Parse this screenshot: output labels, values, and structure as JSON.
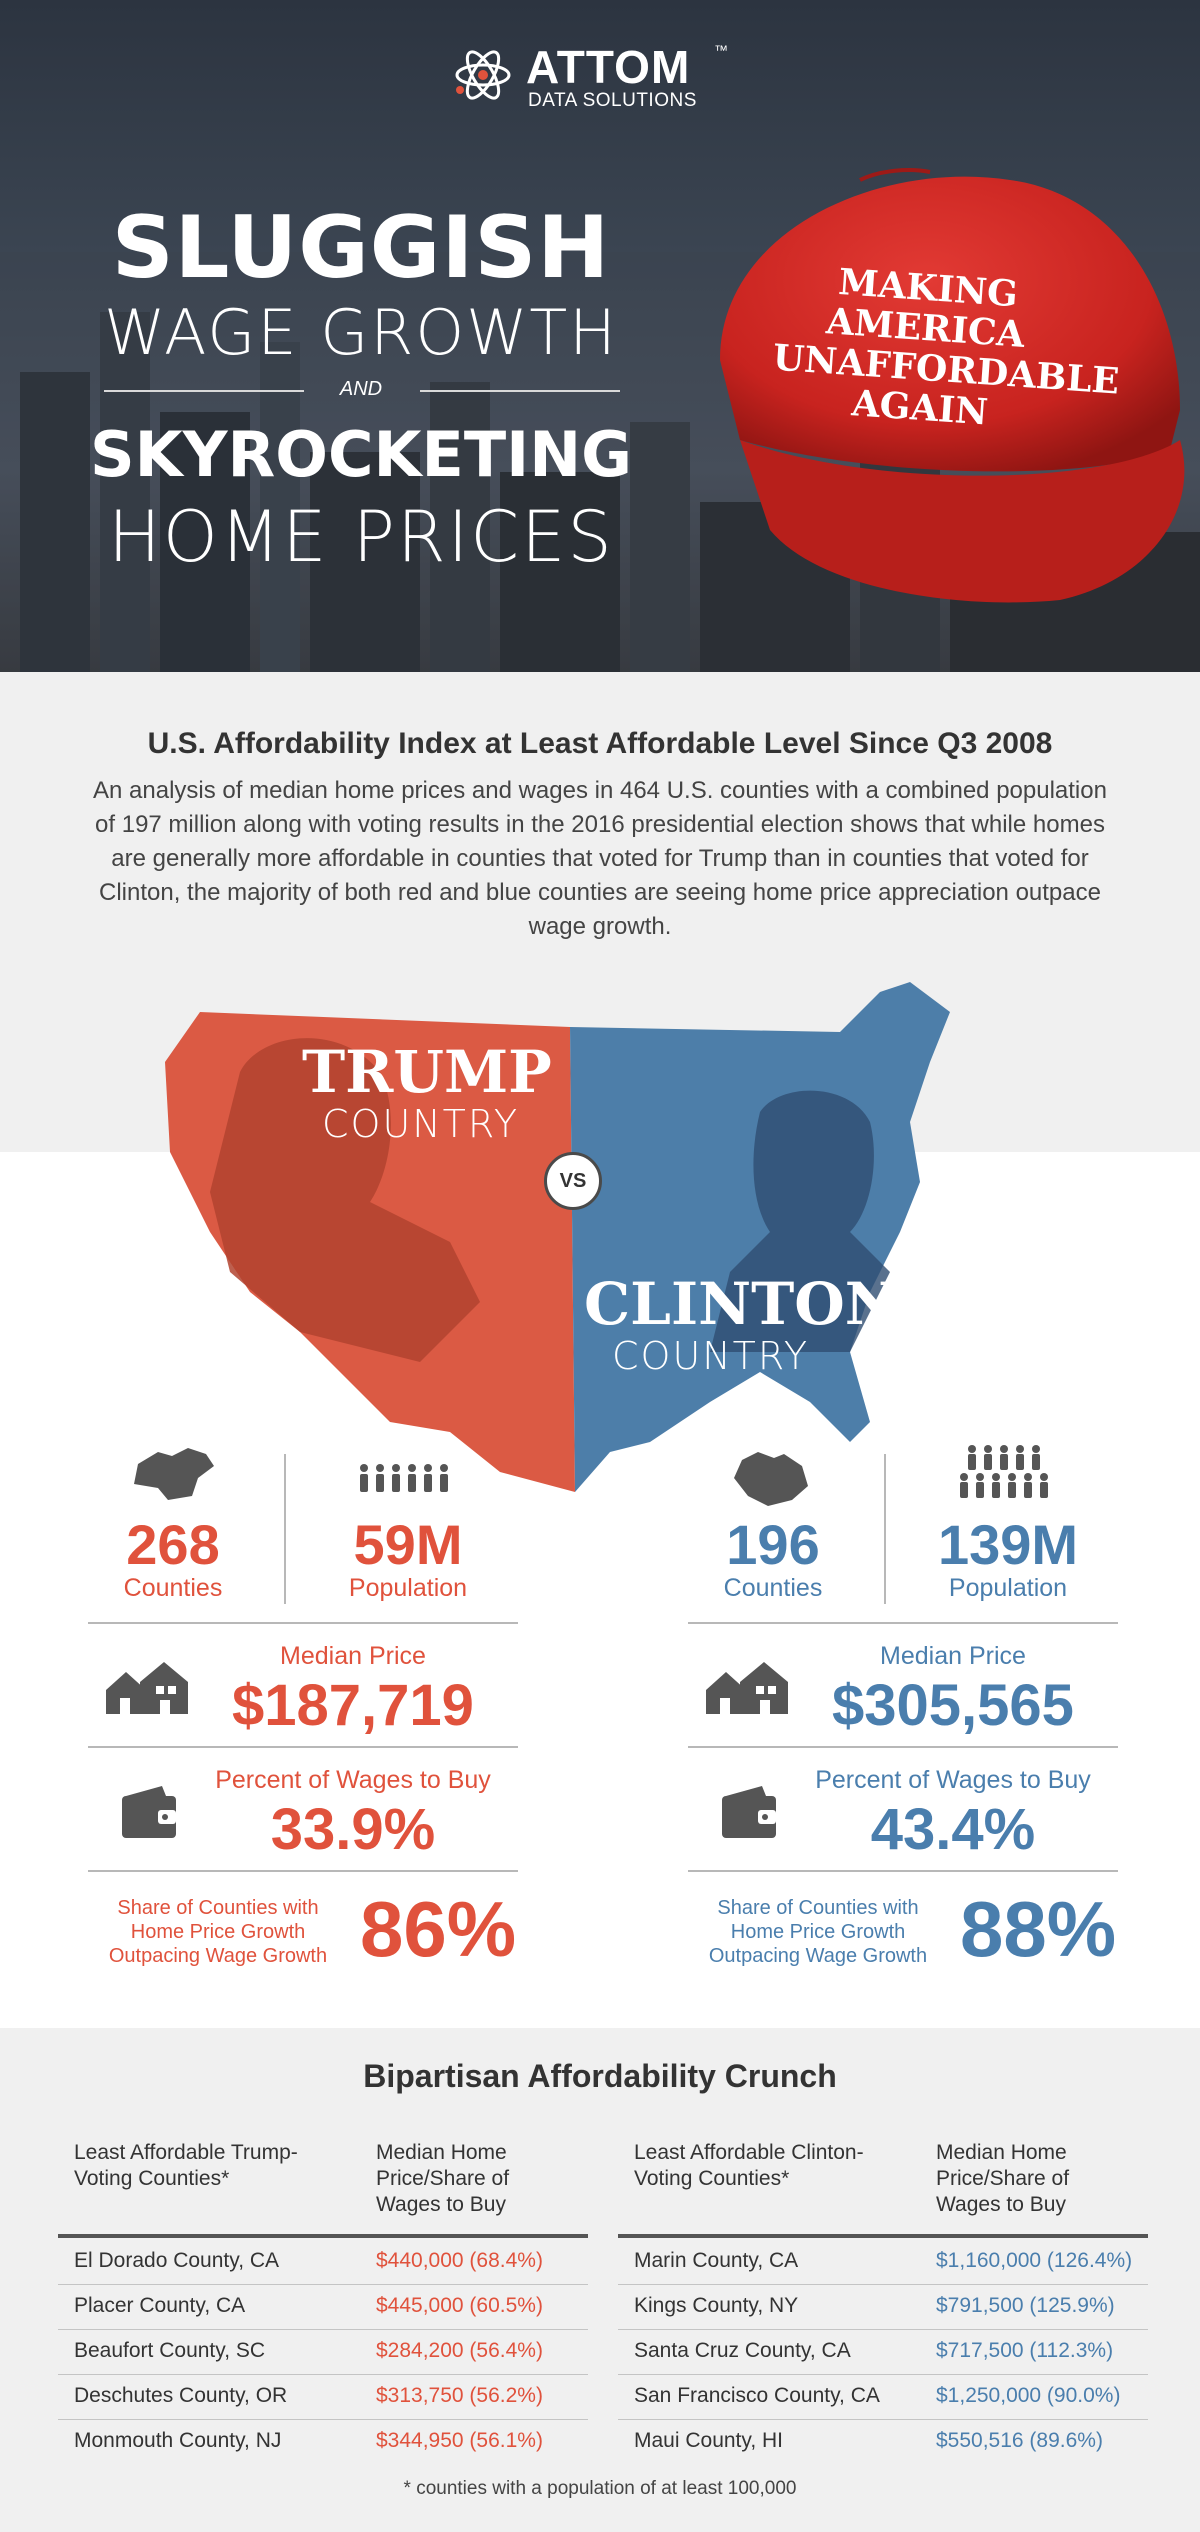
{
  "logo": {
    "word": "ATTOM",
    "tm": "™",
    "sub": "DATA SOLUTIONS"
  },
  "hero": {
    "line1": "SLUGGISH",
    "line2": "WAGE GROWTH",
    "and": "AND",
    "line3": "SKYROCKETING",
    "line4": "HOME PRICES",
    "cap_text": "MAKING AMERICA\nUNAFFORDABLE\nAGAIN"
  },
  "intro": {
    "title": "U.S. Affordability Index at Least Affordable Level Since Q3 2008",
    "body": "An analysis of median home prices and wages in 464 U.S. counties with a combined population of 197 million along with voting results in the 2016 presidential election shows that while homes are generally more affordable in counties that voted for Trump than in counties that voted for Clinton, the majority of both red and blue counties are seeing home price appreciation outpace wage growth."
  },
  "map": {
    "trump_big": "TRUMP",
    "trump_small": "COUNTRY",
    "vs": "VS",
    "clinton_big": "CLINTON",
    "clinton_small": "COUNTRY"
  },
  "colors": {
    "trump": "#e0523c",
    "clinton": "#4a7ead"
  },
  "trump": {
    "counties": "268",
    "counties_label": "Counties",
    "population": "59M",
    "population_label": "Population",
    "median_label": "Median Price",
    "median": "$187,719",
    "wages_label": "Percent of Wages to Buy",
    "wages": "33.9%",
    "share_label": "Share of Counties with Home Price Growth Outpacing Wage Growth",
    "share": "86%"
  },
  "clinton": {
    "counties": "196",
    "counties_label": "Counties",
    "population": "139M",
    "population_label": "Population",
    "median_label": "Median Price",
    "median": "$305,565",
    "wages_label": "Percent of Wages to Buy",
    "wages": "43.4%",
    "share_label": "Share of Counties with Home Price Growth Outpacing Wage Growth",
    "share": "88%"
  },
  "crunch": {
    "title": "Bipartisan Affordability Crunch",
    "trump_head1": "Least Affordable Trump-Voting Counties*",
    "trump_head2": "Median Home Price/Share of Wages to Buy",
    "clinton_head1": "Least Affordable Clinton-Voting Counties*",
    "clinton_head2": "Median Home Price/Share of Wages to Buy",
    "trump_rows": [
      [
        "El Dorado County, CA",
        "$440,000 (68.4%)"
      ],
      [
        "Placer County, CA",
        "$445,000 (60.5%)"
      ],
      [
        "Beaufort County, SC",
        "$284,200 (56.4%)"
      ],
      [
        "Deschutes County, OR",
        "$313,750 (56.2%)"
      ],
      [
        "Monmouth County, NJ",
        "$344,950 (56.1%)"
      ]
    ],
    "clinton_rows": [
      [
        "Marin County, CA",
        "$1,160,000 (126.4%)"
      ],
      [
        "Kings County, NY",
        "$791,500 (125.9%)"
      ],
      [
        "Santa Cruz County, CA",
        "$717,500 (112.3%)"
      ],
      [
        "San Francisco County, CA",
        "$1,250,000 (90.0%)"
      ],
      [
        "Maui County, HI",
        "$550,516 (89.6%)"
      ]
    ],
    "footnote": "* counties with a population of at least 100,000"
  }
}
